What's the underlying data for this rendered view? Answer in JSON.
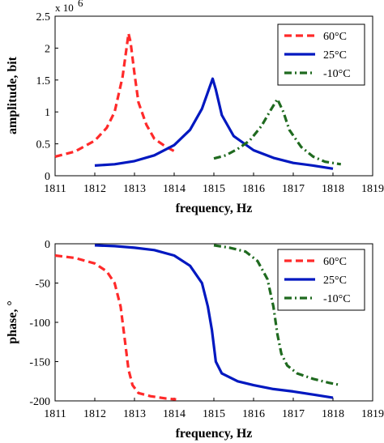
{
  "chart_data": [
    {
      "type": "line",
      "xlabel": "frequency, Hz",
      "ylabel": "amplitude, bit",
      "xlim": [
        1811,
        1819
      ],
      "ylim": [
        0,
        2.5
      ],
      "y_multiplier": "x 10^6",
      "x_ticks": [
        "1811",
        "1812",
        "1813",
        "1814",
        "1815",
        "1816",
        "1817",
        "1818",
        "1819"
      ],
      "y_ticks": [
        "0",
        "0.5",
        "1",
        "1.5",
        "2",
        "2.5"
      ],
      "legend_position": "top-right",
      "series": [
        {
          "name": "60°C",
          "color": "#ff2a2a",
          "dash": "dashed",
          "x": [
            1811.0,
            1811.5,
            1812.0,
            1812.3,
            1812.5,
            1812.7,
            1812.8,
            1812.85,
            1812.9,
            1813.0,
            1813.1,
            1813.3,
            1813.5,
            1813.8,
            1814.05
          ],
          "y": [
            0.3,
            0.38,
            0.55,
            0.75,
            1.0,
            1.55,
            2.0,
            2.23,
            2.1,
            1.6,
            1.15,
            0.8,
            0.58,
            0.45,
            0.37
          ]
        },
        {
          "name": "25°C",
          "color": "#0018c0",
          "dash": "solid",
          "x": [
            1812.0,
            1812.5,
            1813.0,
            1813.5,
            1814.0,
            1814.4,
            1814.7,
            1814.9,
            1814.97,
            1815.05,
            1815.2,
            1815.5,
            1816.0,
            1816.5,
            1817.0,
            1817.5,
            1818.0
          ],
          "y": [
            0.16,
            0.18,
            0.23,
            0.32,
            0.48,
            0.72,
            1.05,
            1.4,
            1.52,
            1.35,
            0.95,
            0.62,
            0.4,
            0.28,
            0.2,
            0.16,
            0.11
          ]
        },
        {
          "name": "-10°C",
          "color": "#1f6a1f",
          "dash": "dashdot",
          "x": [
            1815.0,
            1815.3,
            1815.6,
            1815.9,
            1816.2,
            1816.45,
            1816.6,
            1816.75,
            1816.9,
            1817.2,
            1817.5,
            1817.8,
            1818.2
          ],
          "y": [
            0.27,
            0.32,
            0.42,
            0.55,
            0.78,
            1.05,
            1.2,
            1.0,
            0.72,
            0.45,
            0.3,
            0.22,
            0.18
          ]
        }
      ]
    },
    {
      "type": "line",
      "xlabel": "frequency, Hz",
      "ylabel": "phase, °",
      "xlim": [
        1811,
        1819
      ],
      "ylim": [
        -200,
        0
      ],
      "x_ticks": [
        "1811",
        "1812",
        "1813",
        "1814",
        "1815",
        "1816",
        "1817",
        "1818",
        "1819"
      ],
      "y_ticks": [
        "0",
        "-50",
        "-100",
        "-150",
        "-200"
      ],
      "legend_position": "top-right",
      "series": [
        {
          "name": "60°C",
          "color": "#ff2a2a",
          "dash": "dashed",
          "x": [
            1811.0,
            1811.5,
            1812.0,
            1812.3,
            1812.5,
            1812.65,
            1812.75,
            1812.85,
            1812.95,
            1813.1,
            1813.4,
            1813.8,
            1814.05
          ],
          "y": [
            -15,
            -18,
            -25,
            -35,
            -50,
            -80,
            -120,
            -160,
            -180,
            -190,
            -194,
            -197,
            -198
          ]
        },
        {
          "name": "25°C",
          "color": "#0018c0",
          "dash": "solid",
          "x": [
            1812.0,
            1812.5,
            1813.0,
            1813.5,
            1814.0,
            1814.4,
            1814.7,
            1814.85,
            1814.95,
            1815.05,
            1815.2,
            1815.6,
            1816.0,
            1816.5,
            1817.0,
            1817.5,
            1818.0
          ],
          "y": [
            -2,
            -3,
            -5,
            -8,
            -15,
            -28,
            -50,
            -80,
            -110,
            -150,
            -165,
            -175,
            -180,
            -185,
            -188,
            -192,
            -196
          ]
        },
        {
          "name": "-10°C",
          "color": "#1f6a1f",
          "dash": "dashdot",
          "x": [
            1815.0,
            1815.4,
            1815.8,
            1816.1,
            1816.35,
            1816.5,
            1816.6,
            1816.7,
            1816.85,
            1817.1,
            1817.5,
            1817.9,
            1818.2
          ],
          "y": [
            -2,
            -5,
            -10,
            -22,
            -45,
            -80,
            -115,
            -140,
            -155,
            -165,
            -172,
            -177,
            -180
          ]
        }
      ]
    }
  ]
}
